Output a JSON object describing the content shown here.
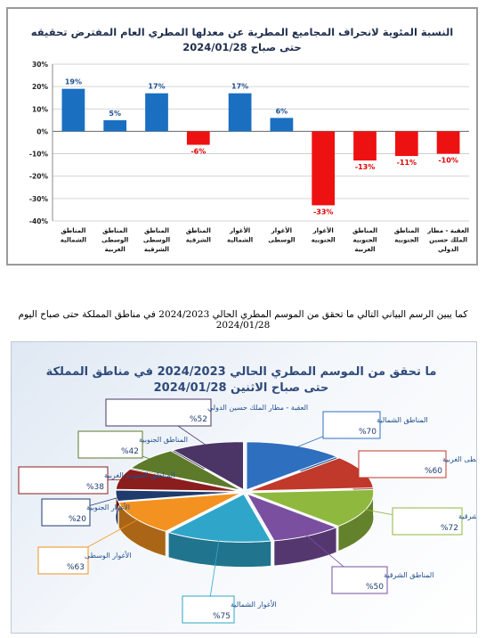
{
  "caption": "كما يبين الرسم البياني التالي ما تحقق من الموسم المطري الحالي 2024/2023 في مناطق المملكة حتى صباح اليوم 2024/01/28",
  "chart_data": [
    {
      "type": "bar",
      "title": "النسبة المئوية لانحراف المجاميع المطرية عن معدلها المطري العام المفترض تحقيقه",
      "subtitle": "حتى صباح 2024/01/28",
      "ylim": [
        -40,
        30
      ],
      "yticks": [
        "30%",
        "20%",
        "10%",
        "0%",
        "-10%",
        "-20%",
        "-30%",
        "-40%"
      ],
      "ytick_values": [
        30,
        20,
        10,
        0,
        -10,
        -20,
        -30,
        -40
      ],
      "grid": true,
      "categories": [
        [
          "المناطق",
          "الشمالية"
        ],
        [
          "المناطق",
          "الوسطى",
          "الغربية"
        ],
        [
          "المناطق",
          "الوسطى",
          "الشرقية"
        ],
        [
          "المناطق",
          "الشرقية"
        ],
        [
          "الأغوار",
          "الشمالية"
        ],
        [
          "الأغوار",
          "الوسطى"
        ],
        [
          "الأغوار",
          "الجنوبية"
        ],
        [
          "المناطق",
          "الجنوبية",
          "الغربية"
        ],
        [
          "المناطق",
          "الجنوبية"
        ],
        [
          "العقبة - مطار",
          "الملك حسين",
          "الدولي"
        ]
      ],
      "values": [
        19,
        5,
        17,
        -6,
        17,
        6,
        -33,
        -13,
        -11,
        -10
      ],
      "value_labels": [
        "19%",
        "5%",
        "17%",
        "-6%",
        "17%",
        "6%",
        "-33%",
        "-13%",
        "-11%",
        "-10%"
      ],
      "positive_color": "#1a6fc1",
      "negative_color": "#ee1111",
      "positive_label_color": "#1f4f8f",
      "negative_label_color": "#e00000"
    },
    {
      "type": "pie",
      "title": "ما تحقق من الموسم المطري الحالي 2024/2023 في مناطق المملكة",
      "subtitle": "حتى صباح الاثنين 2024/01/28",
      "slices": [
        {
          "name": "المناطق الشمالية",
          "label": "%70",
          "value": 70,
          "color": "#2f6fc0"
        },
        {
          "name": "المناطق الوسطى الغربية",
          "label": "%60",
          "value": 60,
          "color": "#c0392b"
        },
        {
          "name": "المناطق الوسطى الشرقية",
          "label": "%72",
          "value": 72,
          "color": "#8fb83f"
        },
        {
          "name": "المناطق الشرقية",
          "label": "%50",
          "value": 50,
          "color": "#7a4fa0"
        },
        {
          "name": "الأغوار الشمالية",
          "label": "%75",
          "value": 75,
          "color": "#2fa6c9"
        },
        {
          "name": "الأغوار الوسطى",
          "label": "%63",
          "value": 63,
          "color": "#f39220"
        },
        {
          "name": "الأغوار الجنوبية",
          "label": "%20",
          "value": 20,
          "color": "#1f3b6e"
        },
        {
          "name": "المناطق الجنوبية الغربية",
          "label": "%38",
          "value": 38,
          "color": "#8a1d1d"
        },
        {
          "name": "المناطق الجنوبية",
          "label": "%42",
          "value": 42,
          "color": "#5c7a2a"
        },
        {
          "name": "العقبة - مطار الملك حسين الدولي",
          "label": "%52",
          "value": 52,
          "color": "#4a3566"
        }
      ],
      "label_title_color": "#1f4f8f",
      "label_value_color": "#1f3b6e"
    }
  ]
}
